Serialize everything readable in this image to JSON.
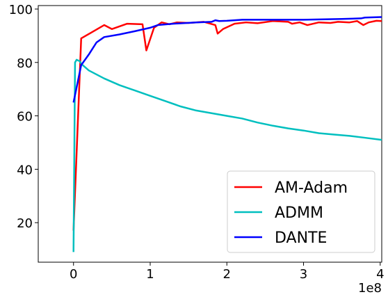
{
  "chart_data": {
    "type": "line",
    "x_offset_label": "1e8",
    "xlim": [
      -0.46,
      4.02
    ],
    "xticks": [
      0,
      1,
      2,
      3,
      4
    ],
    "ylim": [
      5.2,
      101.3
    ],
    "yticks": [
      20,
      40,
      60,
      80,
      100
    ],
    "legend": "lower right",
    "series": [
      {
        "name": "AM-Adam",
        "color": "#ff0000",
        "x": [
          0,
          0.1,
          0.4,
          0.5,
          0.7,
          0.9,
          0.95,
          1.05,
          1.15,
          1.25,
          1.35,
          1.5,
          1.7,
          1.85,
          1.88,
          1.95,
          2.1,
          2.25,
          2.4,
          2.6,
          2.8,
          2.85,
          2.95,
          3.05,
          3.2,
          3.35,
          3.45,
          3.6,
          3.7,
          3.78,
          3.85,
          3.95,
          4.02
        ],
        "values": [
          17,
          89,
          94,
          92.5,
          94.5,
          94.3,
          84.5,
          93,
          95,
          94.3,
          95,
          94.8,
          95.2,
          94,
          90.8,
          92.5,
          94.5,
          95,
          94.7,
          95.5,
          95.2,
          94.5,
          95,
          94,
          95,
          94.8,
          95.2,
          95,
          95.5,
          94,
          95,
          95.6,
          95.5
        ]
      },
      {
        "name": "ADMM",
        "color": "#00bfbf",
        "x": [
          0,
          0.02,
          0.04,
          0.08,
          0.1,
          0.2,
          0.4,
          0.6,
          0.8,
          1.0,
          1.2,
          1.4,
          1.6,
          1.8,
          2.0,
          2.2,
          2.4,
          2.6,
          2.8,
          3.0,
          3.2,
          3.4,
          3.6,
          3.8,
          4.02
        ],
        "values": [
          9,
          80,
          81,
          80.5,
          79.5,
          77,
          74,
          71.5,
          69.5,
          67.5,
          65.5,
          63.5,
          62,
          61,
          60,
          59,
          57.5,
          56.3,
          55.3,
          54.5,
          53.5,
          53,
          52.5,
          51.8,
          51
        ]
      },
      {
        "name": "DANTE",
        "color": "#0000ff",
        "x": [
          0,
          0.05,
          0.1,
          0.2,
          0.3,
          0.4,
          0.6,
          0.8,
          1.0,
          1.1,
          1.3,
          1.6,
          1.8,
          1.85,
          1.9,
          2.0,
          2.2,
          2.5,
          3.0,
          3.5,
          3.75,
          3.8,
          4.02
        ],
        "values": [
          65,
          72,
          79,
          83,
          87.5,
          89.5,
          90.5,
          91.7,
          93,
          94,
          94.5,
          95,
          95.2,
          95.8,
          95.5,
          95.6,
          96,
          96,
          96,
          96.3,
          96.5,
          96.8,
          97
        ]
      }
    ]
  }
}
